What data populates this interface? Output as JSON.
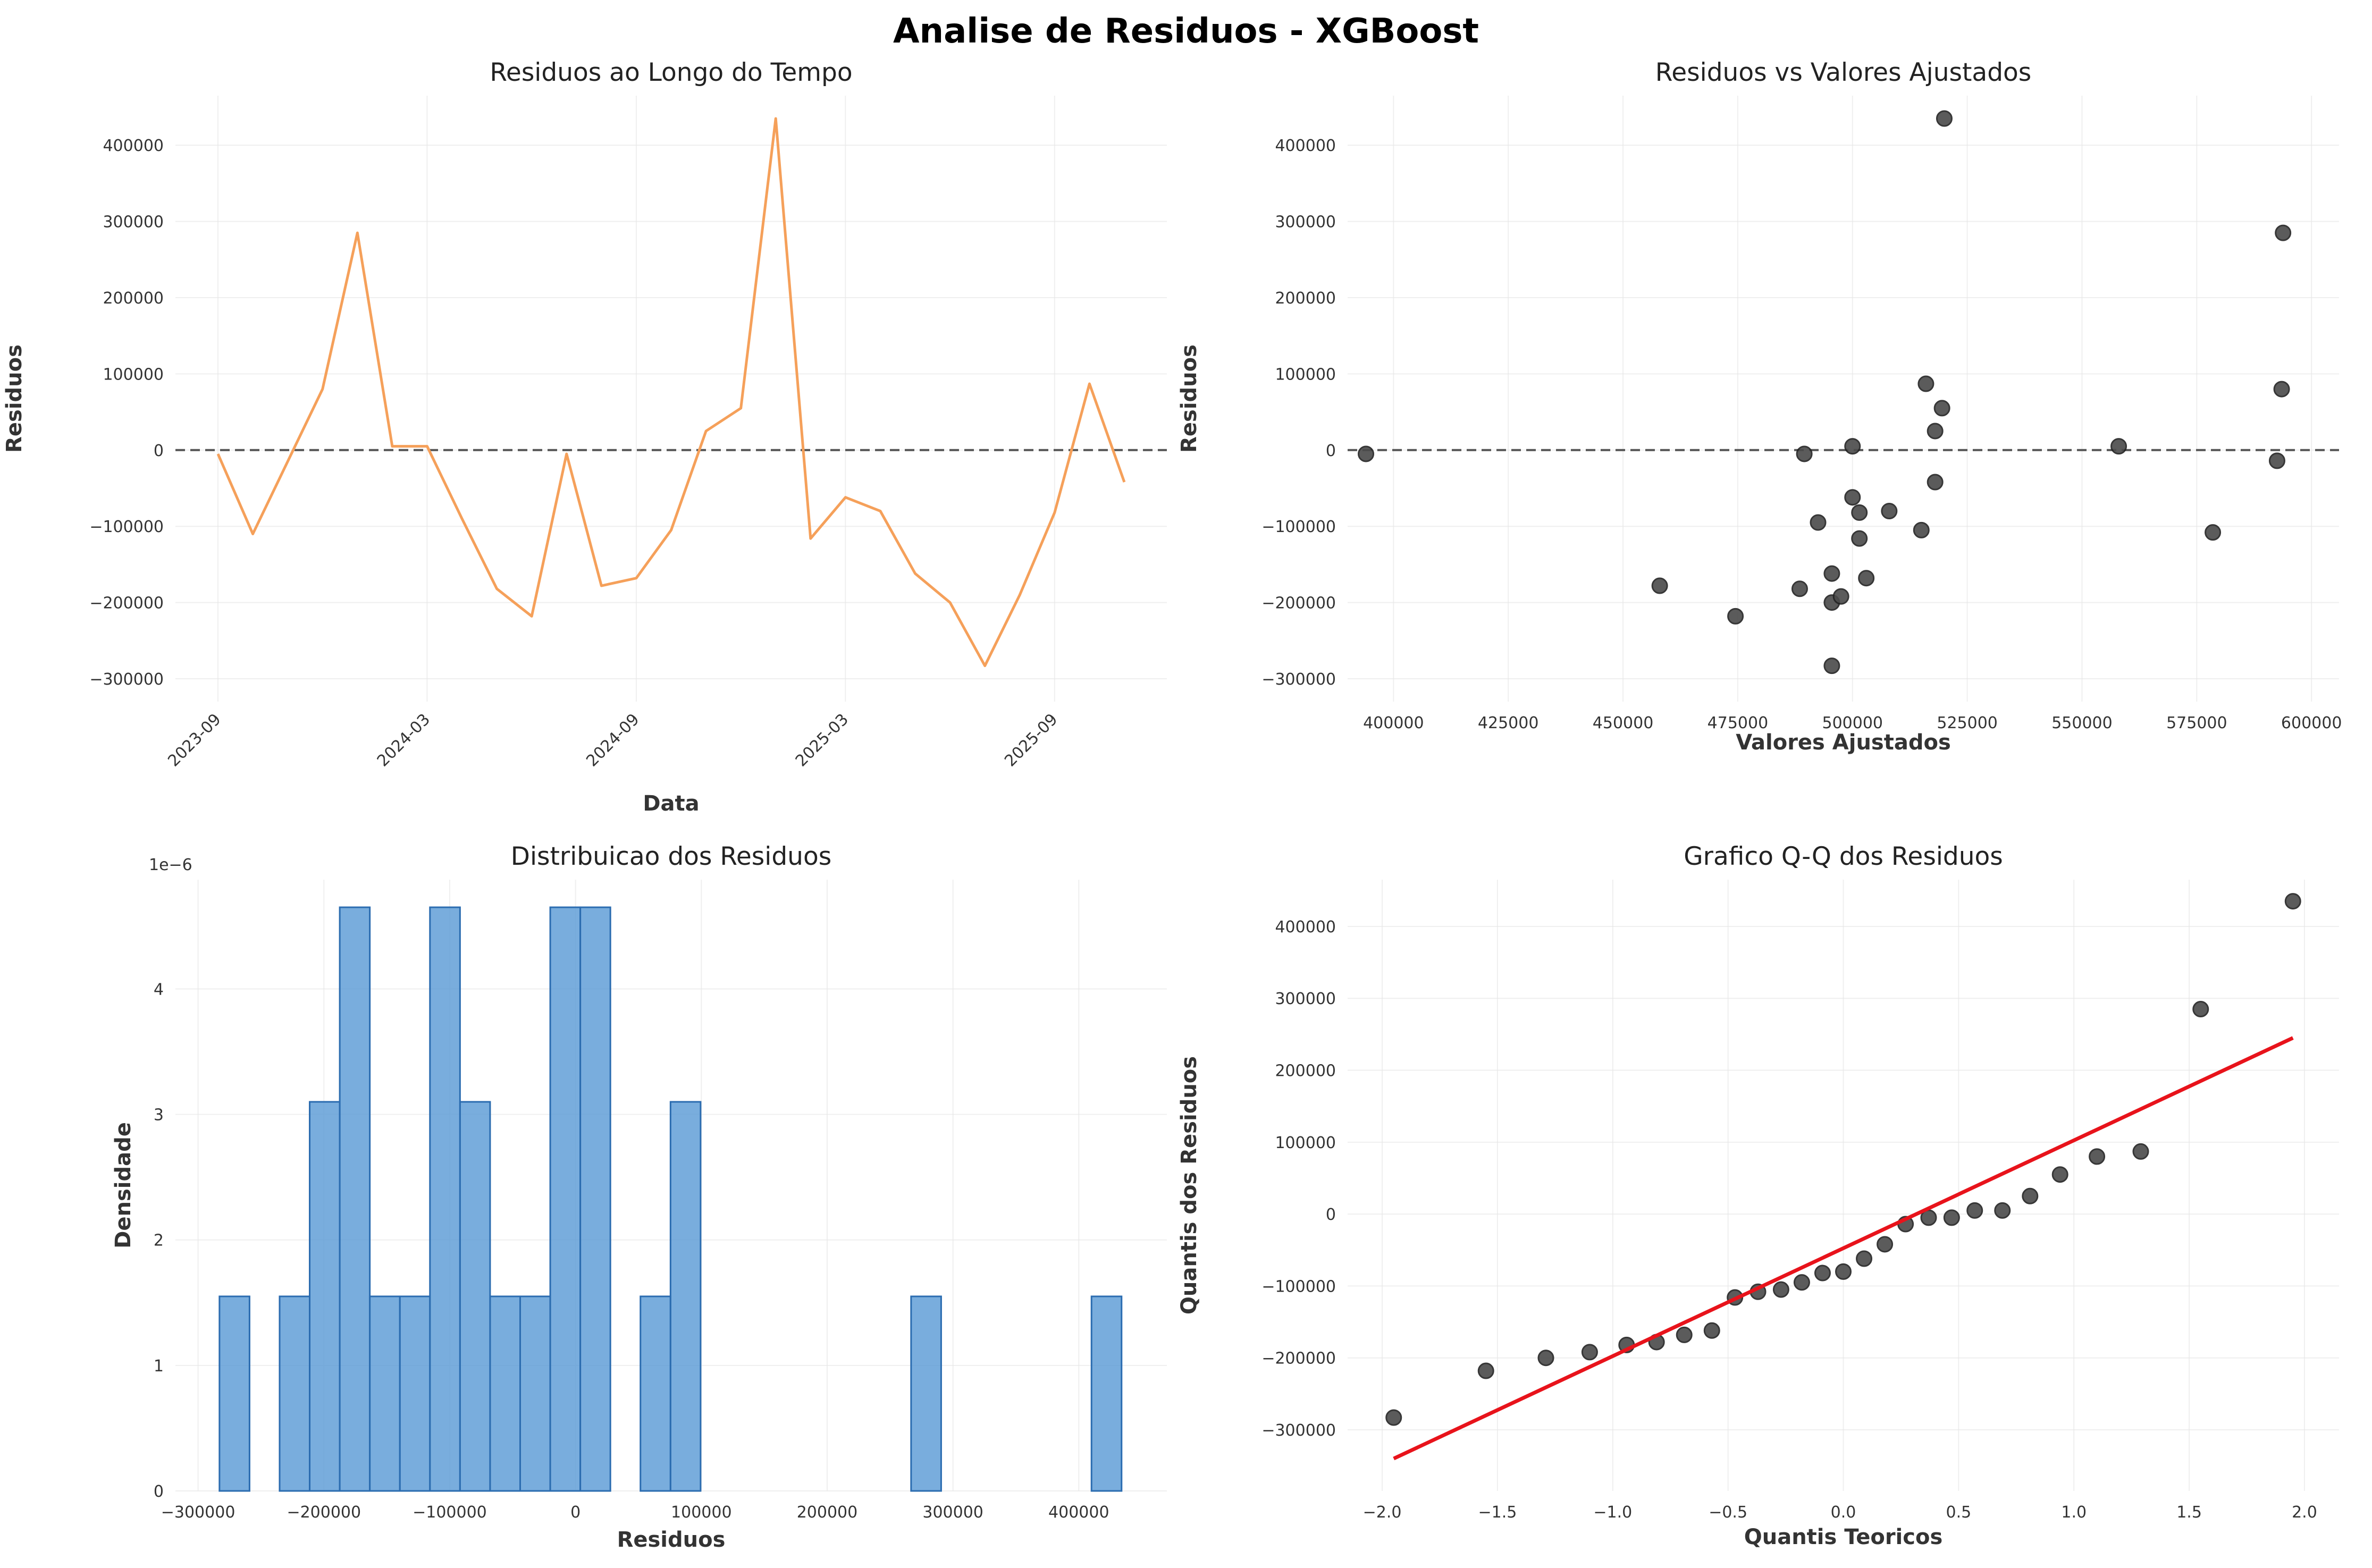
{
  "figure": {
    "title": "Analise de Residuos - XGBoost"
  },
  "chart_data": [
    {
      "type": "line",
      "title": "Residuos ao Longo do Tempo",
      "xlabel": "Data",
      "ylabel": "Residuos",
      "color": "#f5a05a",
      "x": [
        "2023-09",
        "2023-10",
        "2023-11",
        "2023-12",
        "2024-01",
        "2024-02",
        "2024-03",
        "2024-04",
        "2024-05",
        "2024-06",
        "2024-07",
        "2024-08",
        "2024-09",
        "2024-10",
        "2024-11",
        "2024-12",
        "2025-01",
        "2025-02",
        "2025-03",
        "2025-04",
        "2025-05",
        "2025-06",
        "2025-07",
        "2025-08",
        "2025-09",
        "2025-10",
        "2025-11"
      ],
      "y": [
        -5000,
        -110000,
        -15000,
        80000,
        285000,
        5000,
        5000,
        -90000,
        -182000,
        -218000,
        -5000,
        -178000,
        -168000,
        -105000,
        25000,
        55000,
        435000,
        -116000,
        -62000,
        -80000,
        -162000,
        -200000,
        -283000,
        -190000,
        -82000,
        87000,
        -42000
      ],
      "xticks": [
        "2023-09",
        "2024-03",
        "2024-09",
        "2025-03",
        "2025-09"
      ],
      "yticks": [
        -300000,
        -200000,
        -100000,
        0,
        100000,
        200000,
        300000,
        400000
      ],
      "ylim": [
        -330000,
        465000
      ],
      "reference_line": 0,
      "grid": true
    },
    {
      "type": "scatter",
      "title": "Residuos vs Valores Ajustados",
      "xlabel": "Valores Ajustados",
      "ylabel": "Residuos",
      "color": "#333333",
      "x": [
        394000,
        458000,
        474500,
        488500,
        489500,
        492500,
        495500,
        495500,
        495500,
        497500,
        500000,
        500000,
        501500,
        501500,
        503000,
        508000,
        515000,
        516000,
        518000,
        518000,
        519500,
        520000,
        558000,
        578500,
        592500,
        593500,
        593800
      ],
      "y": [
        -5000,
        -178000,
        -218000,
        -182000,
        -5000,
        -95000,
        -162000,
        -200000,
        -283000,
        -192000,
        5000,
        -62000,
        -116000,
        -82000,
        -168000,
        -80000,
        -105000,
        87000,
        25000,
        -42000,
        55000,
        435000,
        5000,
        -108000,
        -14000,
        80000,
        285000
      ],
      "xticks": [
        400000,
        425000,
        450000,
        475000,
        500000,
        525000,
        550000,
        575000,
        600000
      ],
      "yticks": [
        -300000,
        -200000,
        -100000,
        0,
        100000,
        200000,
        300000,
        400000
      ],
      "xlim": [
        390000,
        606000
      ],
      "ylim": [
        -330000,
        465000
      ],
      "reference_line": 0,
      "grid": true
    },
    {
      "type": "bar",
      "title": "Distribuicao dos Residuos",
      "xlabel": "Residuos",
      "ylabel": "Densidade",
      "scale_label": "1e−6",
      "color": "#5b9bd5",
      "edge_color": "#2b6cb0",
      "bin_start": -283000,
      "bin_width": 23900,
      "values": [
        1.55,
        0,
        1.55,
        3.1,
        4.65,
        1.55,
        1.55,
        4.65,
        3.1,
        1.55,
        1.55,
        4.65,
        4.65,
        0,
        1.55,
        3.1,
        0,
        0,
        0,
        0,
        0,
        0,
        0,
        1.55,
        0,
        0,
        0,
        0,
        0,
        1.55
      ],
      "xticks": [
        -300000,
        -200000,
        -100000,
        0,
        100000,
        200000,
        300000,
        400000
      ],
      "xtick_labels": [
        "−300000",
        "−200000",
        "−100000",
        "0",
        "100000",
        "200000",
        "300000",
        "400000"
      ],
      "yticks": [
        0,
        1,
        2,
        3,
        4
      ],
      "xlim": [
        -318000,
        470000
      ],
      "ylim": [
        0,
        4.87
      ],
      "grid": true
    },
    {
      "type": "scatter",
      "title": "Grafico Q-Q dos Residuos",
      "xlabel": "Quantis Teoricos",
      "ylabel": "Quantis dos Residuos",
      "color": "#333333",
      "line_color": "#e8131b",
      "x": [
        -1.95,
        -1.55,
        -1.29,
        -1.1,
        -0.94,
        -0.81,
        -0.69,
        -0.57,
        -0.47,
        -0.37,
        -0.27,
        -0.18,
        -0.09,
        0,
        0.09,
        0.18,
        0.27,
        0.37,
        0.47,
        0.57,
        0.69,
        0.81,
        0.94,
        1.1,
        1.29,
        1.55,
        1.95
      ],
      "y": [
        -283000,
        -218000,
        -200000,
        -192000,
        -182000,
        -178000,
        -168000,
        -162000,
        -116000,
        -108000,
        -105000,
        -95000,
        -82000,
        -80000,
        -62000,
        -42000,
        -14000,
        -5000,
        -5000,
        5000,
        5000,
        25000,
        55000,
        80000,
        87000,
        285000,
        435000
      ],
      "fit_line": {
        "x": [
          -1.95,
          1.95
        ],
        "y": [
          -340000,
          245000
        ]
      },
      "xticks": [
        -2,
        -1.5,
        -1,
        -0.5,
        0,
        0.5,
        1,
        1.5,
        2
      ],
      "xtick_labels": [
        "−2.0",
        "−1.5",
        "−1.0",
        "−0.5",
        "0.0",
        "0.5",
        "1.0",
        "1.5",
        "2.0"
      ],
      "yticks": [
        -300000,
        -200000,
        -100000,
        0,
        100000,
        200000,
        300000,
        400000
      ],
      "xlim": [
        -2.15,
        2.15
      ],
      "ylim": [
        -385000,
        465000
      ],
      "grid": true
    }
  ]
}
